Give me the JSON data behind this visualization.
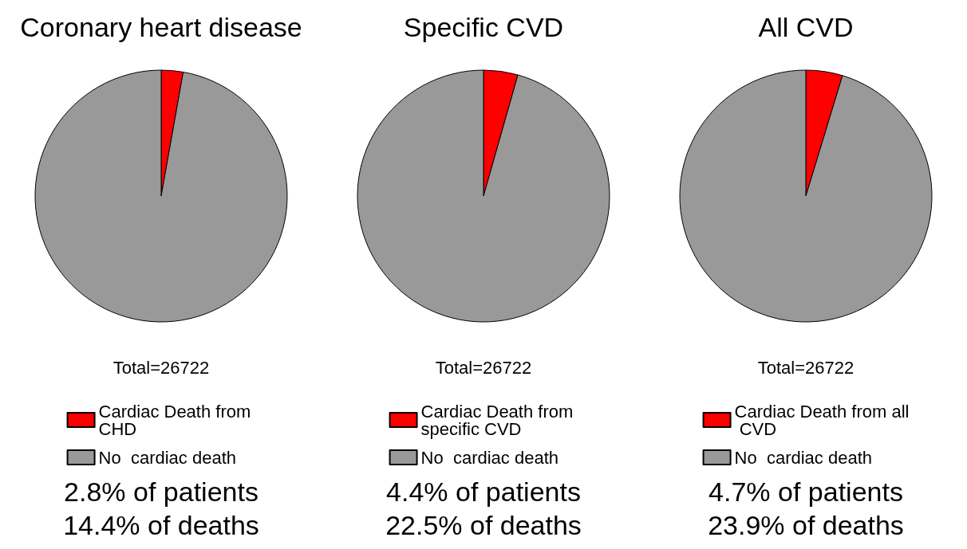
{
  "chart_data": [
    {
      "type": "pie",
      "title": "Coronary heart disease",
      "categories": [
        "Cardiac Death from CHD",
        "No  cardiac death"
      ],
      "values": [
        2.8,
        97.2
      ],
      "colors": [
        "#ff0000",
        "#999999"
      ],
      "legend": "bottom",
      "annotations": [
        "Total=26722",
        "2.8% of patients",
        "14.4% of deaths"
      ]
    },
    {
      "type": "pie",
      "title": "Specific CVD",
      "categories": [
        "Cardiac Death from specific CVD",
        "No  cardiac death"
      ],
      "values": [
        4.4,
        95.6
      ],
      "colors": [
        "#ff0000",
        "#999999"
      ],
      "legend": "bottom",
      "annotations": [
        "Total=26722",
        "4.4% of patients",
        "22.5% of deaths"
      ]
    },
    {
      "type": "pie",
      "title": "All CVD",
      "categories": [
        "Cardiac Death from all CVD",
        "No  cardiac death"
      ],
      "values": [
        4.7,
        95.3
      ],
      "colors": [
        "#ff0000",
        "#999999"
      ],
      "legend": "bottom",
      "annotations": [
        "Total=26722",
        "4.7% of patients",
        "23.9% of deaths"
      ]
    }
  ]
}
